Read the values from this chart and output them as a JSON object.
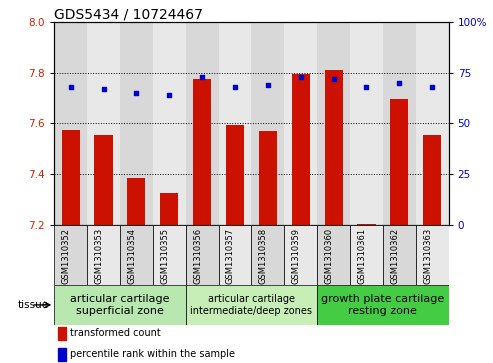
{
  "title": "GDS5434 / 10724467",
  "categories": [
    "GSM1310352",
    "GSM1310353",
    "GSM1310354",
    "GSM1310355",
    "GSM1310356",
    "GSM1310357",
    "GSM1310358",
    "GSM1310359",
    "GSM1310360",
    "GSM1310361",
    "GSM1310362",
    "GSM1310363"
  ],
  "bar_values": [
    7.575,
    7.555,
    7.385,
    7.325,
    7.775,
    7.595,
    7.57,
    7.795,
    7.81,
    7.205,
    7.695,
    7.555
  ],
  "dot_values": [
    68,
    67,
    65,
    64,
    73,
    68,
    69,
    73,
    72,
    68,
    70,
    68
  ],
  "bar_baseline": 7.2,
  "ymin": 7.2,
  "ymax": 8.0,
  "y2min": 0,
  "y2max": 100,
  "yticks": [
    7.2,
    7.4,
    7.6,
    7.8,
    8.0
  ],
  "y2ticks": [
    0,
    25,
    50,
    75,
    100
  ],
  "bar_color": "#CC1100",
  "dot_color": "#0000CC",
  "tissue_groups": [
    {
      "label": "articular cartilage\nsuperficial zone",
      "start": 0,
      "end": 4,
      "color": "#b8e8b0",
      "fontsize": 8
    },
    {
      "label": "articular cartilage\nintermediate/deep zones",
      "start": 4,
      "end": 8,
      "color": "#c8eeb8",
      "fontsize": 7
    },
    {
      "label": "growth plate cartilage\nresting zone",
      "start": 8,
      "end": 12,
      "color": "#44cc44",
      "fontsize": 8
    }
  ],
  "legend_items": [
    {
      "label": "transformed count",
      "color": "#CC1100"
    },
    {
      "label": "percentile rank within the sample",
      "color": "#0000CC"
    }
  ],
  "tissue_label": "tissue",
  "tick_label_color_left": "#CC2200",
  "tick_label_color_right": "#0000CC",
  "bar_width": 0.55,
  "title_fontsize": 10,
  "col_bg_even": "#d8d8d8",
  "col_bg_odd": "#e8e8e8"
}
